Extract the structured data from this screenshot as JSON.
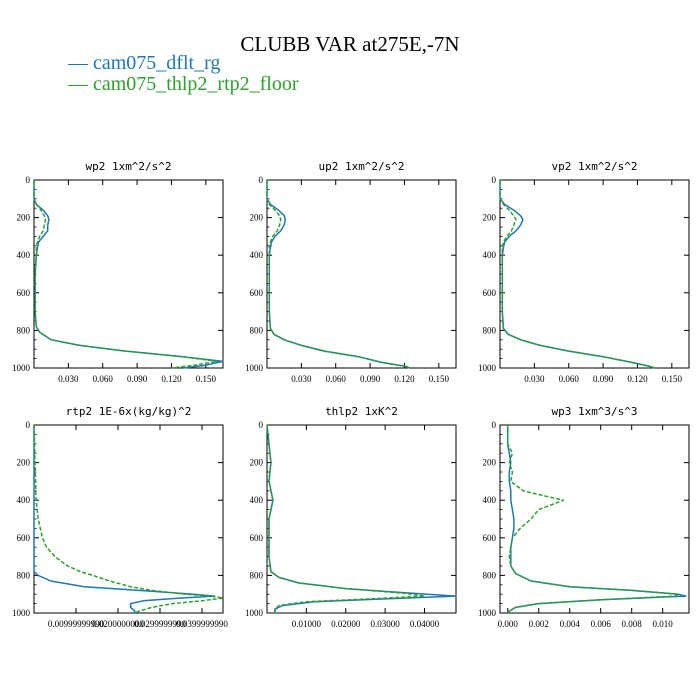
{
  "title": "CLUBB VAR at275E,-7N",
  "legend": [
    {
      "label": "cam075_dflt_rg",
      "color": "#1f77b4"
    },
    {
      "label": "cam075_thlp2_rtp2_floor",
      "color": "#2ca02c"
    }
  ],
  "chart_data": [
    {
      "type": "line",
      "title": "wp2  1xm^2/s^2",
      "xlim": [
        0,
        0.165
      ],
      "ylim": [
        1000,
        0
      ],
      "xticks": [
        0.03,
        0.06,
        0.09,
        0.12,
        0.15
      ],
      "xtick_labels": [
        "0.030",
        "0.060",
        "0.090",
        "0.120",
        "0.150"
      ],
      "yticks": [
        0,
        200,
        400,
        600,
        800,
        1000
      ],
      "ytick_labels": [
        "0",
        "200",
        "400",
        "600",
        "800",
        "1000"
      ],
      "y": [
        0,
        100,
        130,
        160,
        190,
        210,
        240,
        270,
        300,
        330,
        360,
        400,
        500,
        600,
        700,
        780,
        810,
        850,
        880,
        910,
        940,
        965,
        985,
        1000
      ],
      "series": [
        {
          "name": "cam075_dflt_rg",
          "color": "#1f77b4",
          "dash": false,
          "values": [
            0,
            0,
            0.002,
            0.008,
            0.012,
            0.013,
            0.012,
            0.012,
            0.008,
            0.004,
            0.003,
            0.002,
            0.001,
            0.001,
            0.001,
            0.002,
            0.005,
            0.015,
            0.04,
            0.08,
            0.13,
            0.165,
            0.15,
            0.13
          ]
        },
        {
          "name": "cam075_thlp2_rtp2_floor",
          "color": "#2ca02c",
          "dash": true,
          "values": [
            0,
            0,
            0.002,
            0.006,
            0.009,
            0.01,
            0.009,
            0.008,
            0.005,
            0.003,
            0.002,
            0.002,
            0.001,
            0.001,
            0.001,
            0.002,
            0.005,
            0.015,
            0.04,
            0.08,
            0.13,
            0.16,
            0.14,
            0.12
          ]
        }
      ]
    },
    {
      "type": "line",
      "title": "up2  1xm^2/s^2",
      "xlim": [
        0,
        0.165
      ],
      "ylim": [
        1000,
        0
      ],
      "xticks": [
        0.03,
        0.06,
        0.09,
        0.12,
        0.15
      ],
      "xtick_labels": [
        "0.030",
        "0.060",
        "0.090",
        "0.120",
        "0.150"
      ],
      "yticks": [
        0,
        200,
        400,
        600,
        800,
        1000
      ],
      "ytick_labels": [
        "0",
        "200",
        "400",
        "600",
        "800",
        "1000"
      ],
      "y": [
        0,
        100,
        130,
        160,
        190,
        210,
        240,
        270,
        300,
        330,
        360,
        400,
        500,
        600,
        700,
        790,
        820,
        850,
        880,
        910,
        940,
        970,
        990,
        1000
      ],
      "series": [
        {
          "name": "cam075_dflt_rg",
          "color": "#1f77b4",
          "dash": false,
          "values": [
            0,
            0,
            0.003,
            0.01,
            0.015,
            0.016,
            0.015,
            0.012,
            0.007,
            0.004,
            0.003,
            0.002,
            0.002,
            0.002,
            0.002,
            0.003,
            0.006,
            0.015,
            0.03,
            0.05,
            0.08,
            0.1,
            0.12,
            0.125
          ]
        },
        {
          "name": "cam075_thlp2_rtp2_floor",
          "color": "#2ca02c",
          "dash": true,
          "values": [
            0,
            0,
            0.002,
            0.007,
            0.011,
            0.012,
            0.011,
            0.009,
            0.005,
            0.003,
            0.002,
            0.002,
            0.002,
            0.002,
            0.002,
            0.003,
            0.006,
            0.015,
            0.03,
            0.05,
            0.08,
            0.1,
            0.12,
            0.125
          ]
        }
      ]
    },
    {
      "type": "line",
      "title": "vp2  1xm^2/s^2",
      "xlim": [
        0,
        0.165
      ],
      "ylim": [
        1000,
        0
      ],
      "xticks": [
        0.03,
        0.06,
        0.09,
        0.12,
        0.15
      ],
      "xtick_labels": [
        "0.030",
        "0.060",
        "0.090",
        "0.120",
        "0.150"
      ],
      "yticks": [
        0,
        200,
        400,
        600,
        800,
        1000
      ],
      "ytick_labels": [
        "0",
        "200",
        "400",
        "600",
        "800",
        "1000"
      ],
      "y": [
        0,
        100,
        130,
        160,
        190,
        210,
        240,
        270,
        300,
        330,
        360,
        400,
        500,
        600,
        700,
        790,
        820,
        850,
        880,
        910,
        940,
        970,
        990,
        1000
      ],
      "series": [
        {
          "name": "cam075_dflt_rg",
          "color": "#1f77b4",
          "dash": false,
          "values": [
            0,
            0,
            0.004,
            0.012,
            0.018,
            0.02,
            0.018,
            0.014,
            0.008,
            0.004,
            0.003,
            0.002,
            0.002,
            0.002,
            0.002,
            0.003,
            0.007,
            0.018,
            0.035,
            0.06,
            0.09,
            0.115,
            0.13,
            0.135
          ]
        },
        {
          "name": "cam075_thlp2_rtp2_floor",
          "color": "#2ca02c",
          "dash": true,
          "values": [
            0,
            0,
            0.003,
            0.008,
            0.012,
            0.014,
            0.012,
            0.01,
            0.006,
            0.003,
            0.002,
            0.002,
            0.002,
            0.002,
            0.002,
            0.003,
            0.007,
            0.018,
            0.035,
            0.06,
            0.09,
            0.115,
            0.13,
            0.135
          ]
        }
      ]
    },
    {
      "type": "line",
      "title": "rtp2  1E-6x(kg/kg)^2",
      "xlim": [
        0,
        0.045
      ],
      "ylim": [
        1000,
        0
      ],
      "xticks": [
        0.01,
        0.02,
        0.03,
        0.04
      ],
      "xtick_labels": [
        "0.00999999990",
        "0.0200000000",
        "0.0299999990",
        "0.0399999990"
      ],
      "yticks": [
        0,
        200,
        400,
        600,
        800,
        1000
      ],
      "ytick_labels": [
        "0",
        "200",
        "400",
        "600",
        "800",
        "1000"
      ],
      "y": [
        0,
        400,
        500,
        600,
        650,
        700,
        750,
        780,
        800,
        830,
        860,
        880,
        900,
        910,
        920,
        935,
        950,
        970,
        990,
        1000
      ],
      "series": [
        {
          "name": "cam075_dflt_rg",
          "color": "#1f77b4",
          "dash": false,
          "values": [
            0,
            0,
            0,
            0,
            0,
            0,
            0,
            0,
            0.001,
            0.004,
            0.012,
            0.025,
            0.038,
            0.043,
            0.035,
            0.026,
            0.023,
            0.023,
            0.024,
            0.024
          ]
        },
        {
          "name": "cam075_thlp2_rtp2_floor",
          "color": "#2ca02c",
          "dash": true,
          "values": [
            0,
            0.0005,
            0.001,
            0.002,
            0.003,
            0.005,
            0.008,
            0.011,
            0.014,
            0.018,
            0.023,
            0.028,
            0.036,
            0.042,
            0.045,
            0.04,
            0.033,
            0.028,
            0.025,
            0.024
          ]
        }
      ]
    },
    {
      "type": "line",
      "title": "thlp2  1xK^2",
      "xlim": [
        0,
        0.048
      ],
      "ylim": [
        1000,
        0
      ],
      "xticks": [
        0.01,
        0.02,
        0.03,
        0.04
      ],
      "xtick_labels": [
        "0.01000",
        "0.02000",
        "0.03000",
        "0.04000"
      ],
      "yticks": [
        0,
        200,
        400,
        600,
        800,
        1000
      ],
      "ytick_labels": [
        "0",
        "200",
        "400",
        "600",
        "800",
        "1000"
      ],
      "y": [
        0,
        100,
        200,
        300,
        400,
        500,
        600,
        700,
        780,
        810,
        840,
        870,
        895,
        910,
        925,
        940,
        960,
        980,
        1000
      ],
      "series": [
        {
          "name": "cam075_dflt_rg",
          "color": "#1f77b4",
          "dash": false,
          "values": [
            0,
            0.0005,
            0.001,
            0.0005,
            0.0015,
            0.0005,
            0.0005,
            0.0005,
            0.001,
            0.003,
            0.008,
            0.02,
            0.037,
            0.048,
            0.03,
            0.012,
            0.004,
            0.002,
            0.002
          ]
        },
        {
          "name": "cam075_thlp2_rtp2_floor",
          "color": "#2ca02c",
          "dash": true,
          "values": [
            0,
            0.0005,
            0.001,
            0.0005,
            0.0015,
            0.0005,
            0.0005,
            0.0005,
            0.001,
            0.003,
            0.008,
            0.02,
            0.035,
            0.04,
            0.026,
            0.01,
            0.003,
            0.002,
            0.002
          ]
        }
      ]
    },
    {
      "type": "line",
      "title": "wp3  1xm^3/s^3",
      "xlim": [
        -0.0005,
        0.0117
      ],
      "ylim": [
        1000,
        0
      ],
      "xticks": [
        0,
        0.002,
        0.004,
        0.006,
        0.008,
        0.01
      ],
      "xtick_labels": [
        "0.000",
        "0.002",
        "0.004",
        "0.006",
        "0.008",
        "0.010"
      ],
      "yticks": [
        0,
        200,
        400,
        600,
        800,
        1000
      ],
      "ytick_labels": [
        "0",
        "200",
        "400",
        "600",
        "800",
        "1000"
      ],
      "y": [
        0,
        100,
        150,
        200,
        250,
        300,
        350,
        380,
        400,
        450,
        500,
        550,
        600,
        650,
        700,
        750,
        790,
        830,
        860,
        880,
        900,
        910,
        930,
        950,
        970,
        990,
        1000
      ],
      "series": [
        {
          "name": "cam075_dflt_rg",
          "color": "#1f77b4",
          "dash": false,
          "values": [
            0,
            0,
            0.0001,
            0.0002,
            0.0001,
            0.0001,
            0.0002,
            0.0002,
            0.0002,
            0.0003,
            0.0004,
            0.0004,
            0.0003,
            0.0002,
            0.0002,
            0.0002,
            0.0005,
            0.0015,
            0.004,
            0.008,
            0.011,
            0.0115,
            0.006,
            0.002,
            0.0005,
            0.0001,
            0
          ]
        },
        {
          "name": "cam075_thlp2_rtp2_floor",
          "color": "#2ca02c",
          "dash": true,
          "values": [
            0,
            0,
            0.0003,
            0.0001,
            0.0003,
            0.0002,
            0.001,
            0.0025,
            0.0036,
            0.002,
            0.0015,
            0.0008,
            0.0003,
            0.0002,
            0.0001,
            0.0002,
            0.0005,
            0.0015,
            0.004,
            0.008,
            0.011,
            0.0108,
            0.006,
            0.002,
            0.0005,
            0.0001,
            0
          ]
        }
      ]
    }
  ]
}
